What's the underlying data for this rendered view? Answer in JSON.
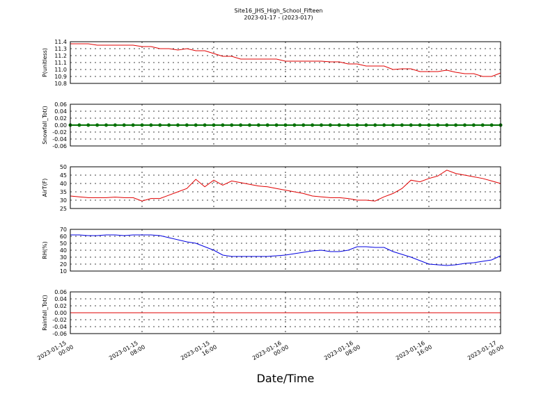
{
  "chart_data": [
    {
      "type": "line",
      "title": "Site16_JHS_High_School_Fifteen",
      "subtitle": "2023-01-17 - (2023-017)",
      "ylabel": "P(unitless)",
      "grid": true,
      "xlim": [
        "2023-01-15 00:00",
        "2023-01-17 00:00"
      ],
      "xticks": [
        "2023-01-15 00:00",
        "2023-01-15 08:00",
        "2023-01-15 16:00",
        "2023-01-16 00:00",
        "2023-01-16 08:00",
        "2023-01-16 16:00",
        "2023-01-17 00:00"
      ],
      "ylim": [
        10.8,
        11.4
      ],
      "yticks": [
        10.8,
        10.9,
        {
          "value": 11,
          "label": "11.0"
        },
        11.1,
        11.2,
        11.3,
        11.4
      ],
      "x": [
        "2023-01-15 00:00",
        "2023-01-15 01:00",
        "2023-01-15 02:00",
        "2023-01-15 03:00",
        "2023-01-15 04:00",
        "2023-01-15 05:00",
        "2023-01-15 06:00",
        "2023-01-15 07:00",
        "2023-01-15 08:00",
        "2023-01-15 09:00",
        "2023-01-15 10:00",
        "2023-01-15 11:00",
        "2023-01-15 12:00",
        "2023-01-15 13:00",
        "2023-01-15 14:00",
        "2023-01-15 15:00",
        "2023-01-15 16:00",
        "2023-01-15 17:00",
        "2023-01-15 18:00",
        "2023-01-15 19:00",
        "2023-01-15 20:00",
        "2023-01-15 21:00",
        "2023-01-15 22:00",
        "2023-01-15 23:00",
        "2023-01-16 00:00",
        "2023-01-16 01:00",
        "2023-01-16 02:00",
        "2023-01-16 03:00",
        "2023-01-16 04:00",
        "2023-01-16 05:00",
        "2023-01-16 06:00",
        "2023-01-16 07:00",
        "2023-01-16 08:00",
        "2023-01-16 09:00",
        "2023-01-16 10:00",
        "2023-01-16 11:00",
        "2023-01-16 12:00",
        "2023-01-16 13:00",
        "2023-01-16 14:00",
        "2023-01-16 15:00",
        "2023-01-16 16:00",
        "2023-01-16 17:00",
        "2023-01-16 18:00",
        "2023-01-16 19:00",
        "2023-01-16 20:00",
        "2023-01-16 21:00",
        "2023-01-16 22:00",
        "2023-01-16 23:00",
        "2023-01-17 00:00"
      ],
      "series": [
        {
          "name": "P",
          "color": "#e00000",
          "values": [
            11.37,
            11.37,
            11.37,
            11.35,
            11.35,
            11.35,
            11.35,
            11.35,
            11.33,
            11.33,
            11.3,
            11.3,
            11.28,
            11.3,
            11.27,
            11.27,
            11.23,
            11.19,
            11.19,
            11.15,
            11.15,
            11.15,
            11.15,
            11.15,
            11.12,
            11.12,
            11.12,
            11.12,
            11.12,
            11.11,
            11.11,
            11.08,
            11.08,
            11.05,
            11.05,
            11.05,
            11.0,
            11.01,
            11.01,
            10.97,
            10.97,
            10.97,
            10.99,
            10.96,
            10.94,
            10.94,
            10.9,
            10.9,
            10.95
          ]
        }
      ]
    },
    {
      "type": "line",
      "ylabel": "Snowfall_Tot()",
      "grid": true,
      "xlim": [
        "2023-01-15 00:00",
        "2023-01-17 00:00"
      ],
      "xticks": [
        "2023-01-15 00:00",
        "2023-01-15 08:00",
        "2023-01-15 16:00",
        "2023-01-16 00:00",
        "2023-01-16 08:00",
        "2023-01-16 16:00",
        "2023-01-17 00:00"
      ],
      "ylim": [
        -0.06,
        0.06
      ],
      "yticks": [
        -0.06,
        -0.04,
        -0.02,
        {
          "value": 0,
          "label": "0.00"
        },
        0.02,
        0.04,
        0.06
      ],
      "x": [
        "2023-01-15 00:00",
        "2023-01-15 01:00",
        "2023-01-15 02:00",
        "2023-01-15 03:00",
        "2023-01-15 04:00",
        "2023-01-15 05:00",
        "2023-01-15 06:00",
        "2023-01-15 07:00",
        "2023-01-15 08:00",
        "2023-01-15 09:00",
        "2023-01-15 10:00",
        "2023-01-15 11:00",
        "2023-01-15 12:00",
        "2023-01-15 13:00",
        "2023-01-15 14:00",
        "2023-01-15 15:00",
        "2023-01-15 16:00",
        "2023-01-15 17:00",
        "2023-01-15 18:00",
        "2023-01-15 19:00",
        "2023-01-15 20:00",
        "2023-01-15 21:00",
        "2023-01-15 22:00",
        "2023-01-15 23:00",
        "2023-01-16 00:00",
        "2023-01-16 01:00",
        "2023-01-16 02:00",
        "2023-01-16 03:00",
        "2023-01-16 04:00",
        "2023-01-16 05:00",
        "2023-01-16 06:00",
        "2023-01-16 07:00",
        "2023-01-16 08:00",
        "2023-01-16 09:00",
        "2023-01-16 10:00",
        "2023-01-16 11:00",
        "2023-01-16 12:00",
        "2023-01-16 13:00",
        "2023-01-16 14:00",
        "2023-01-16 15:00",
        "2023-01-16 16:00",
        "2023-01-16 17:00",
        "2023-01-16 18:00",
        "2023-01-16 19:00",
        "2023-01-16 20:00",
        "2023-01-16 21:00",
        "2023-01-16 22:00",
        "2023-01-16 23:00",
        "2023-01-17 00:00"
      ],
      "series": [
        {
          "name": "Snowfall_Tot",
          "color": "#007000",
          "markers": true,
          "values": [
            0,
            0,
            0,
            0,
            0,
            0,
            0,
            0,
            0,
            0,
            0,
            0,
            0,
            0,
            0,
            0,
            0,
            0,
            0,
            0,
            0,
            0,
            0,
            0,
            0,
            0,
            0,
            0,
            0,
            0,
            0,
            0,
            0,
            0,
            0,
            0,
            0,
            0,
            0,
            0,
            0,
            0,
            0,
            0,
            0,
            0,
            0,
            0,
            0
          ]
        }
      ]
    },
    {
      "type": "line",
      "ylabel": "AirT(F)",
      "grid": true,
      "xlim": [
        "2023-01-15 00:00",
        "2023-01-17 00:00"
      ],
      "xticks": [
        "2023-01-15 00:00",
        "2023-01-15 08:00",
        "2023-01-15 16:00",
        "2023-01-16 00:00",
        "2023-01-16 08:00",
        "2023-01-16 16:00",
        "2023-01-17 00:00"
      ],
      "ylim": [
        25,
        50
      ],
      "yticks": [
        25,
        30,
        35,
        40,
        45,
        50
      ],
      "x": [
        "2023-01-15 00:00",
        "2023-01-15 01:00",
        "2023-01-15 02:00",
        "2023-01-15 03:00",
        "2023-01-15 04:00",
        "2023-01-15 05:00",
        "2023-01-15 06:00",
        "2023-01-15 07:00",
        "2023-01-15 08:00",
        "2023-01-15 09:00",
        "2023-01-15 10:00",
        "2023-01-15 11:00",
        "2023-01-15 12:00",
        "2023-01-15 13:00",
        "2023-01-15 14:00",
        "2023-01-15 15:00",
        "2023-01-15 16:00",
        "2023-01-15 17:00",
        "2023-01-15 18:00",
        "2023-01-15 19:00",
        "2023-01-15 20:00",
        "2023-01-15 21:00",
        "2023-01-15 22:00",
        "2023-01-15 23:00",
        "2023-01-16 00:00",
        "2023-01-16 01:00",
        "2023-01-16 02:00",
        "2023-01-16 03:00",
        "2023-01-16 04:00",
        "2023-01-16 05:00",
        "2023-01-16 06:00",
        "2023-01-16 07:00",
        "2023-01-16 08:00",
        "2023-01-16 09:00",
        "2023-01-16 10:00",
        "2023-01-16 11:00",
        "2023-01-16 12:00",
        "2023-01-16 13:00",
        "2023-01-16 14:00",
        "2023-01-16 15:00",
        "2023-01-16 16:00",
        "2023-01-16 17:00",
        "2023-01-16 18:00",
        "2023-01-16 19:00",
        "2023-01-16 20:00",
        "2023-01-16 21:00",
        "2023-01-16 22:00",
        "2023-01-16 23:00",
        "2023-01-17 00:00"
      ],
      "series": [
        {
          "name": "AirT",
          "color": "#e00000",
          "values": [
            32.5,
            32,
            31.5,
            31.5,
            31.5,
            31.8,
            31.5,
            31.5,
            29.5,
            31,
            31,
            33,
            35,
            37,
            42.5,
            38,
            42,
            39,
            41.5,
            40.5,
            39.5,
            38.5,
            38,
            37,
            36,
            35,
            34,
            32.5,
            32,
            31.5,
            31.5,
            31,
            30,
            30,
            29.5,
            32,
            34,
            37,
            42,
            41,
            43,
            44.5,
            48,
            46,
            45,
            44,
            43,
            41.5,
            40
          ]
        }
      ]
    },
    {
      "type": "line",
      "ylabel": "RH(%)",
      "grid": true,
      "xlim": [
        "2023-01-15 00:00",
        "2023-01-17 00:00"
      ],
      "xticks": [
        "2023-01-15 00:00",
        "2023-01-15 08:00",
        "2023-01-15 16:00",
        "2023-01-16 00:00",
        "2023-01-16 08:00",
        "2023-01-16 16:00",
        "2023-01-17 00:00"
      ],
      "ylim": [
        10,
        70
      ],
      "yticks": [
        10,
        20,
        30,
        40,
        50,
        60,
        70
      ],
      "x": [
        "2023-01-15 00:00",
        "2023-01-15 01:00",
        "2023-01-15 02:00",
        "2023-01-15 03:00",
        "2023-01-15 04:00",
        "2023-01-15 05:00",
        "2023-01-15 06:00",
        "2023-01-15 07:00",
        "2023-01-15 08:00",
        "2023-01-15 09:00",
        "2023-01-15 10:00",
        "2023-01-15 11:00",
        "2023-01-15 12:00",
        "2023-01-15 13:00",
        "2023-01-15 14:00",
        "2023-01-15 15:00",
        "2023-01-15 16:00",
        "2023-01-15 17:00",
        "2023-01-15 18:00",
        "2023-01-15 19:00",
        "2023-01-15 20:00",
        "2023-01-15 21:00",
        "2023-01-15 22:00",
        "2023-01-15 23:00",
        "2023-01-16 00:00",
        "2023-01-16 01:00",
        "2023-01-16 02:00",
        "2023-01-16 03:00",
        "2023-01-16 04:00",
        "2023-01-16 05:00",
        "2023-01-16 06:00",
        "2023-01-16 07:00",
        "2023-01-16 08:00",
        "2023-01-16 09:00",
        "2023-01-16 10:00",
        "2023-01-16 11:00",
        "2023-01-16 12:00",
        "2023-01-16 13:00",
        "2023-01-16 14:00",
        "2023-01-16 15:00",
        "2023-01-16 16:00",
        "2023-01-16 17:00",
        "2023-01-16 18:00",
        "2023-01-16 19:00",
        "2023-01-16 20:00",
        "2023-01-16 21:00",
        "2023-01-16 22:00",
        "2023-01-16 23:00",
        "2023-01-17 00:00"
      ],
      "series": [
        {
          "name": "RH",
          "color": "#0000e0",
          "values": [
            62,
            62,
            61,
            61,
            62,
            62,
            61,
            62,
            62,
            62,
            61,
            58,
            55,
            52,
            50,
            45,
            40,
            33,
            31,
            31,
            31,
            31,
            31,
            32,
            33,
            35,
            37,
            39,
            40,
            38,
            38,
            40,
            45,
            45,
            44,
            44,
            38,
            34,
            30,
            25,
            20,
            19,
            18,
            19,
            21,
            22,
            24,
            26,
            32
          ]
        }
      ]
    },
    {
      "type": "line",
      "ylabel": "Rainfall_Tot()",
      "xlabel": "Date/Time",
      "grid": true,
      "xlim": [
        "2023-01-15 00:00",
        "2023-01-17 00:00"
      ],
      "xticks": [
        "2023-01-15 00:00",
        "2023-01-15 08:00",
        "2023-01-15 16:00",
        "2023-01-16 00:00",
        "2023-01-16 08:00",
        "2023-01-16 16:00",
        "2023-01-17 00:00"
      ],
      "ylim": [
        -0.06,
        0.06
      ],
      "yticks": [
        -0.06,
        -0.04,
        -0.02,
        {
          "value": 0,
          "label": "0.00"
        },
        0.02,
        0.04,
        0.06
      ],
      "x": [
        "2023-01-15 00:00",
        "2023-01-15 01:00",
        "2023-01-15 02:00",
        "2023-01-15 03:00",
        "2023-01-15 04:00",
        "2023-01-15 05:00",
        "2023-01-15 06:00",
        "2023-01-15 07:00",
        "2023-01-15 08:00",
        "2023-01-15 09:00",
        "2023-01-15 10:00",
        "2023-01-15 11:00",
        "2023-01-15 12:00",
        "2023-01-15 13:00",
        "2023-01-15 14:00",
        "2023-01-15 15:00",
        "2023-01-15 16:00",
        "2023-01-15 17:00",
        "2023-01-15 18:00",
        "2023-01-15 19:00",
        "2023-01-15 20:00",
        "2023-01-15 21:00",
        "2023-01-15 22:00",
        "2023-01-15 23:00",
        "2023-01-16 00:00",
        "2023-01-16 01:00",
        "2023-01-16 02:00",
        "2023-01-16 03:00",
        "2023-01-16 04:00",
        "2023-01-16 05:00",
        "2023-01-16 06:00",
        "2023-01-16 07:00",
        "2023-01-16 08:00",
        "2023-01-16 09:00",
        "2023-01-16 10:00",
        "2023-01-16 11:00",
        "2023-01-16 12:00",
        "2023-01-16 13:00",
        "2023-01-16 14:00",
        "2023-01-16 15:00",
        "2023-01-16 16:00",
        "2023-01-16 17:00",
        "2023-01-16 18:00",
        "2023-01-16 19:00",
        "2023-01-16 20:00",
        "2023-01-16 21:00",
        "2023-01-16 22:00",
        "2023-01-16 23:00",
        "2023-01-17 00:00"
      ],
      "series": [
        {
          "name": "Rainfall_Tot",
          "color": "#e00000",
          "values": [
            0,
            0,
            0,
            0,
            0,
            0,
            0,
            0,
            0,
            0,
            0,
            0,
            0,
            0,
            0,
            0,
            0,
            0,
            0,
            0,
            0,
            0,
            0,
            0,
            0,
            0,
            0,
            0,
            0,
            0,
            0,
            0,
            0,
            0,
            0,
            0,
            0,
            0,
            0,
            0,
            0,
            0,
            0,
            0,
            0,
            0,
            0,
            0,
            0
          ]
        }
      ]
    }
  ]
}
